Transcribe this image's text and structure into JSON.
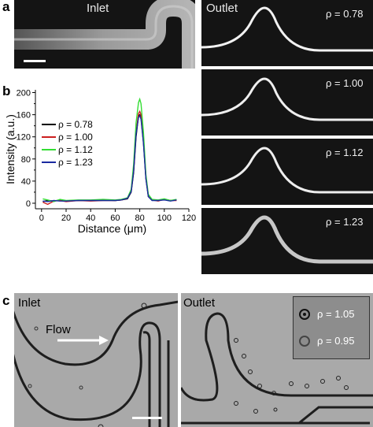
{
  "panel_a": {
    "letter": "a",
    "inlet_title": "Inlet",
    "outlet_title": "Outlet",
    "outlet_rho_labels": [
      "ρ = 0.78",
      "ρ = 1.00",
      "ρ = 1.12",
      "ρ = 1.23"
    ]
  },
  "panel_b": {
    "letter": "b"
  },
  "panel_c": {
    "letter": "c",
    "inlet_title": "Inlet",
    "outlet_title": "Outlet",
    "flow_label": "Flow",
    "inset_labels": [
      "ρ = 1.05",
      "ρ = 0.95"
    ]
  },
  "chart_data": {
    "type": "line",
    "xlabel": "Distance (μm)",
    "ylabel": "Intensity (a.u.)",
    "xlim": [
      -5,
      120
    ],
    "ylim": [
      -10,
      205
    ],
    "xticks": [
      0,
      20,
      40,
      60,
      80,
      100,
      120
    ],
    "yticks": [
      0,
      40,
      80,
      120,
      160,
      200
    ],
    "yticks_minor": [
      20,
      60,
      100,
      140,
      180
    ],
    "legend_position": "left",
    "series": [
      {
        "name": "ρ = 0.78",
        "color": "#000000",
        "x": [
          1,
          5,
          10,
          15,
          20,
          30,
          40,
          50,
          60,
          65,
          70,
          73,
          75,
          77,
          79,
          80,
          81,
          83,
          85,
          87,
          90,
          95,
          100,
          105,
          110
        ],
        "y": [
          3,
          5,
          4,
          6,
          4,
          5,
          5,
          6,
          5,
          6,
          8,
          20,
          55,
          120,
          158,
          160,
          155,
          110,
          45,
          12,
          6,
          5,
          7,
          5,
          6
        ]
      },
      {
        "name": "ρ = 1.00",
        "color": "#cc1f1f",
        "x": [
          1,
          5,
          10,
          15,
          20,
          30,
          40,
          50,
          60,
          65,
          70,
          73,
          75,
          77,
          79,
          80,
          81,
          83,
          85,
          87,
          90,
          95,
          100,
          105,
          110
        ],
        "y": [
          2,
          -2,
          4,
          5,
          3,
          5,
          4,
          5,
          5,
          6,
          9,
          22,
          60,
          128,
          162,
          166,
          160,
          115,
          48,
          14,
          6,
          4,
          7,
          5,
          5
        ]
      },
      {
        "name": "ρ = 1.12",
        "color": "#33dd33",
        "x": [
          1,
          5,
          10,
          15,
          20,
          30,
          40,
          50,
          60,
          65,
          70,
          73,
          75,
          77,
          79,
          80,
          81,
          83,
          85,
          87,
          90,
          95,
          100,
          105,
          110
        ],
        "y": [
          8,
          6,
          3,
          7,
          5,
          6,
          6,
          7,
          6,
          7,
          10,
          25,
          70,
          145,
          182,
          188,
          180,
          128,
          52,
          16,
          7,
          6,
          8,
          5,
          7
        ]
      },
      {
        "name": "ρ = 1.23",
        "color": "#1a2aa0",
        "x": [
          1,
          5,
          10,
          15,
          20,
          30,
          40,
          50,
          60,
          65,
          70,
          73,
          75,
          77,
          79,
          80,
          81,
          83,
          85,
          87,
          90,
          95,
          100,
          105,
          110
        ],
        "y": [
          4,
          3,
          5,
          4,
          4,
          5,
          5,
          5,
          5,
          6,
          9,
          21,
          58,
          125,
          155,
          158,
          152,
          108,
          44,
          12,
          5,
          5,
          6,
          4,
          6
        ]
      }
    ]
  }
}
